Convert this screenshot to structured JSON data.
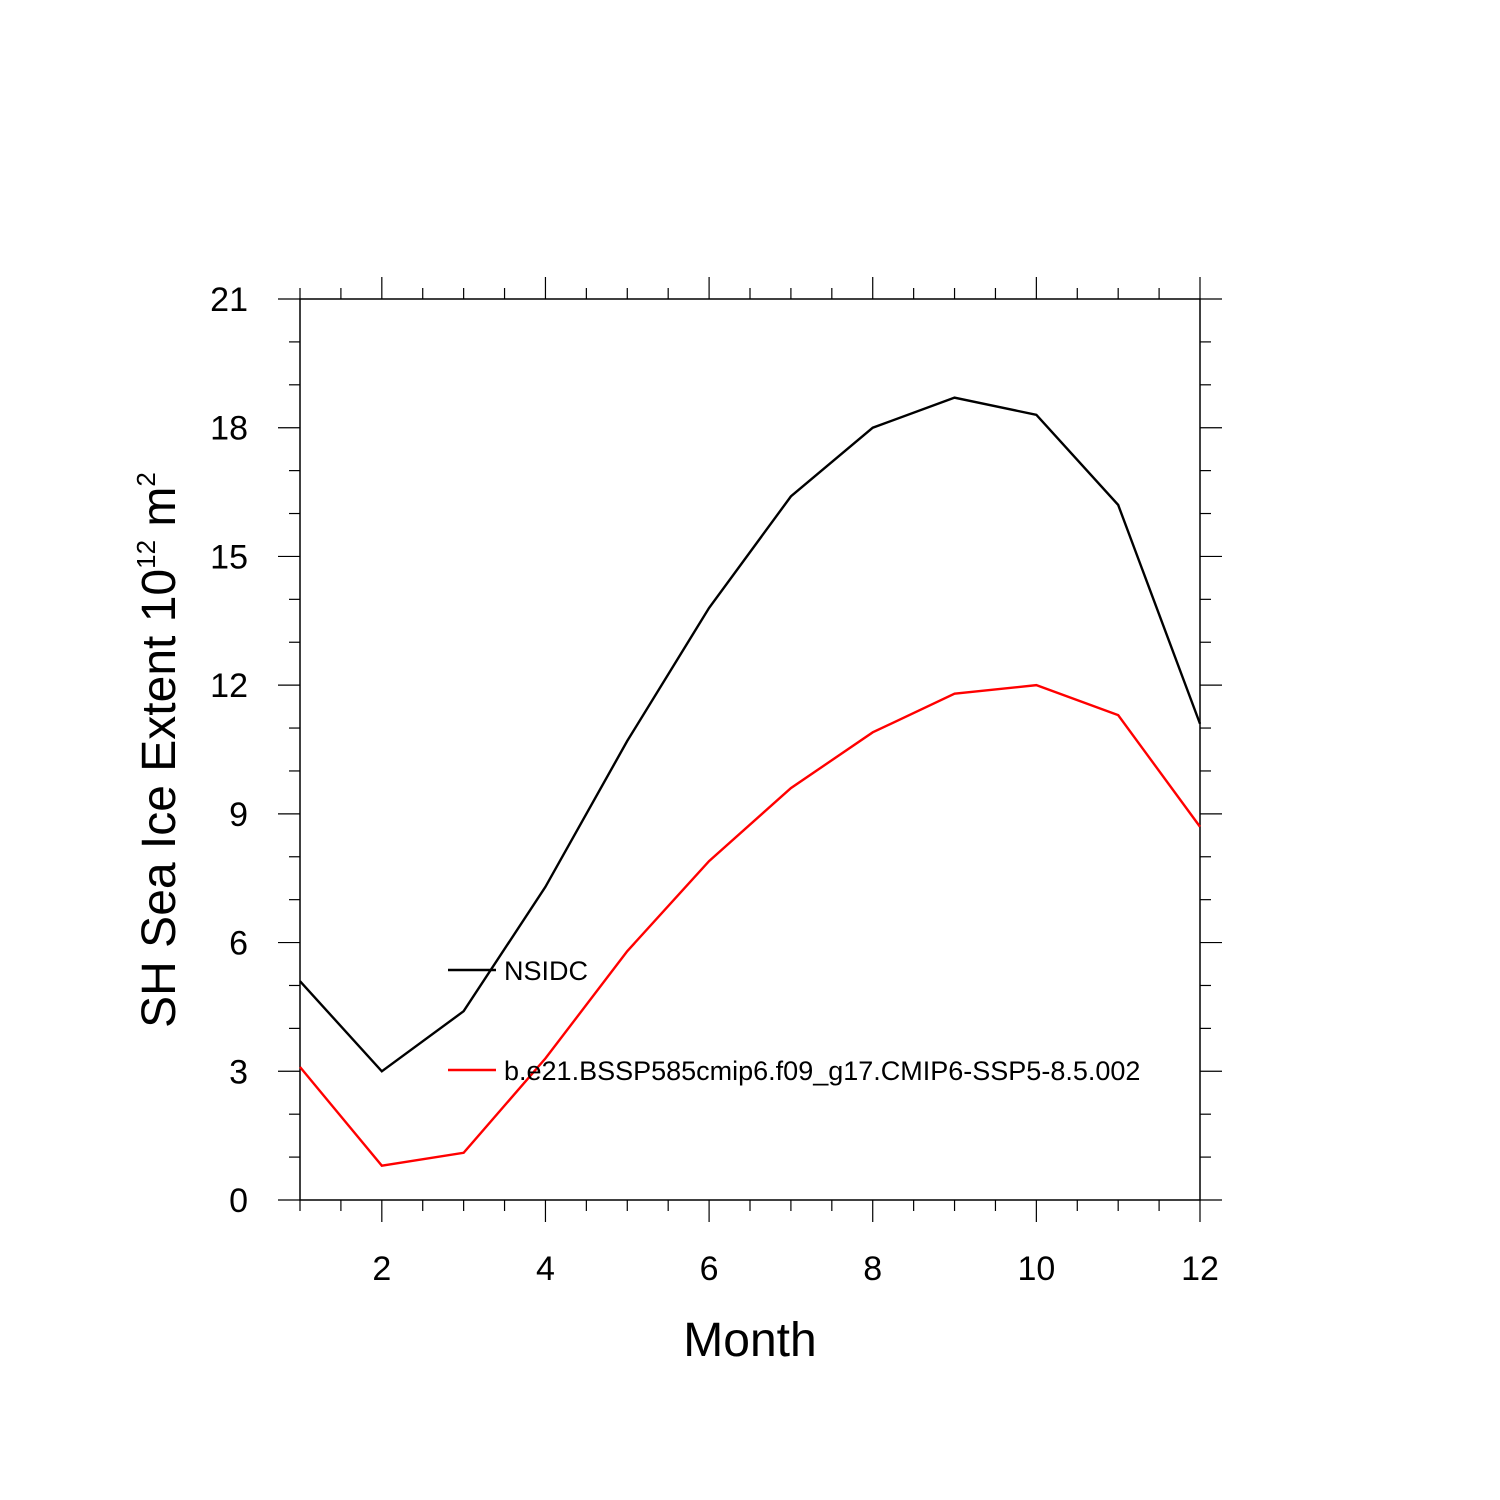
{
  "chart_data": {
    "type": "line",
    "title": "",
    "xlabel": "Month",
    "ylabel_main": "SH Sea Ice Extent 10",
    "ylabel_exp": "12",
    "ylabel_unit": "m",
    "ylabel_unit_exp": "2",
    "xlim": [
      1,
      12
    ],
    "ylim": [
      0,
      21
    ],
    "xticks": [
      2,
      4,
      6,
      8,
      10,
      12
    ],
    "yticks": [
      0,
      3,
      6,
      9,
      12,
      15,
      18,
      21
    ],
    "x": [
      1,
      2,
      3,
      4,
      5,
      6,
      7,
      8,
      9,
      10,
      11,
      12
    ],
    "series": [
      {
        "name": "NSIDC",
        "color": "#000000",
        "values": [
          5.1,
          3.0,
          4.4,
          7.3,
          10.7,
          13.8,
          16.4,
          18.0,
          18.7,
          18.3,
          16.2,
          11.1
        ]
      },
      {
        "name": "b.e21.BSSP585cmip6.f09_g17.CMIP6-SSP5-8.5.002",
        "color": "#ff0000",
        "values": [
          3.1,
          0.8,
          1.1,
          3.3,
          5.8,
          7.9,
          9.6,
          10.9,
          11.8,
          12.0,
          11.3,
          8.7
        ]
      }
    ],
    "legend_position": "inside-center-left",
    "grid": false
  }
}
